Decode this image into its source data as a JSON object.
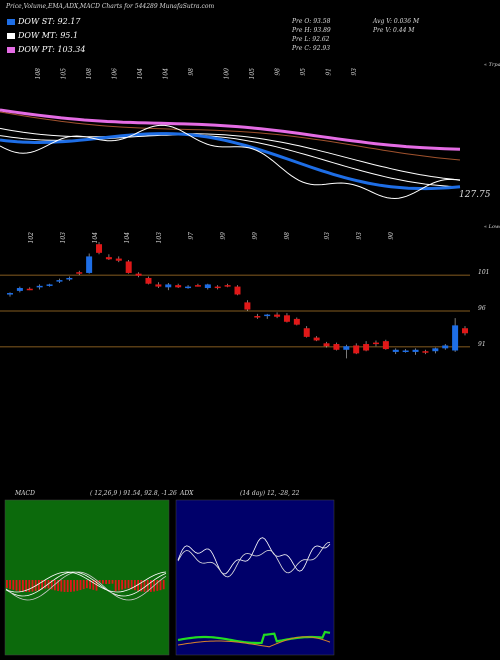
{
  "header": {
    "title": "Price,Volume,EMA,ADX,MACD Charts for 544289 MunafaSutra.com"
  },
  "legend": [
    {
      "label": "DOW ST: 92.17",
      "color": "#1e6ee6"
    },
    {
      "label": "DOW MT: 95.1",
      "color": "#ffffff"
    },
    {
      "label": "DOW PT: 103.34",
      "color": "#e46ce4"
    }
  ],
  "stats": {
    "c1": [
      "Pre  O: 93.58",
      "Pre  H: 93.89",
      "Pre  L: 92.62",
      "Pre  C: 92.93"
    ],
    "c2": [
      "Avg V: 0.036  M",
      "Pre  V: 0.44  M"
    ]
  },
  "colors": {
    "up": "#1e6ee6",
    "down": "#e01818",
    "ema_short": "#1e6ee6",
    "ema_long": "#e46ce4",
    "level_line": "#b07a2a",
    "macd_bg": "#0c6a0c",
    "adx_bg": "#00006a"
  },
  "chart_data": [
    {
      "type": "line",
      "name": "ema-panel",
      "top_labels": [
        "108",
        "105",
        "108",
        "106",
        "104",
        "104",
        "98",
        "100",
        "105",
        "98",
        "95",
        "91",
        "93"
      ],
      "corner_label": "« Trpa",
      "last_value_label": "127.75"
    },
    {
      "type": "candlestick",
      "name": "price-panel",
      "top_labels": [
        "102",
        "103",
        "104",
        "104",
        "103",
        "97",
        "99",
        "99",
        "98",
        "93",
        "93",
        "90"
      ],
      "corner_label": "« Lowes",
      "right_labels": [
        "101",
        "96",
        "91"
      ],
      "levels": [
        101,
        96,
        91
      ],
      "candles": [
        {
          "o": 98.3,
          "h": 98.6,
          "l": 98.0,
          "c": 98.5
        },
        {
          "o": 98.8,
          "h": 99.4,
          "l": 98.6,
          "c": 99.2
        },
        {
          "o": 99.1,
          "h": 99.3,
          "l": 98.9,
          "c": 99.0
        },
        {
          "o": 99.3,
          "h": 99.7,
          "l": 99.0,
          "c": 99.5
        },
        {
          "o": 99.6,
          "h": 99.8,
          "l": 99.4,
          "c": 99.7
        },
        {
          "o": 100.1,
          "h": 100.5,
          "l": 99.9,
          "c": 100.3
        },
        {
          "o": 100.5,
          "h": 100.8,
          "l": 100.2,
          "c": 100.6
        },
        {
          "o": 101.4,
          "h": 101.6,
          "l": 101.0,
          "c": 101.2
        },
        {
          "o": 101.3,
          "h": 104.0,
          "l": 101.2,
          "c": 103.6
        },
        {
          "o": 105.3,
          "h": 105.6,
          "l": 103.9,
          "c": 104.1
        },
        {
          "o": 103.5,
          "h": 103.9,
          "l": 103.1,
          "c": 103.2
        },
        {
          "o": 103.3,
          "h": 103.6,
          "l": 102.8,
          "c": 103.0
        },
        {
          "o": 102.9,
          "h": 103.1,
          "l": 101.2,
          "c": 101.3
        },
        {
          "o": 101.2,
          "h": 101.4,
          "l": 100.7,
          "c": 100.9
        },
        {
          "o": 100.6,
          "h": 100.8,
          "l": 99.7,
          "c": 99.8
        },
        {
          "o": 99.7,
          "h": 100.0,
          "l": 99.2,
          "c": 99.4
        },
        {
          "o": 99.3,
          "h": 99.9,
          "l": 98.9,
          "c": 99.7
        },
        {
          "o": 99.6,
          "h": 99.8,
          "l": 99.2,
          "c": 99.3
        },
        {
          "o": 99.3,
          "h": 99.6,
          "l": 99.1,
          "c": 99.4
        },
        {
          "o": 99.6,
          "h": 99.8,
          "l": 99.4,
          "c": 99.5
        },
        {
          "o": 99.2,
          "h": 99.8,
          "l": 99.0,
          "c": 99.7
        },
        {
          "o": 99.4,
          "h": 99.6,
          "l": 99.0,
          "c": 99.2
        },
        {
          "o": 99.6,
          "h": 99.8,
          "l": 99.3,
          "c": 99.5
        },
        {
          "o": 99.4,
          "h": 99.6,
          "l": 98.2,
          "c": 98.3
        },
        {
          "o": 97.2,
          "h": 97.5,
          "l": 96.0,
          "c": 96.2
        },
        {
          "o": 95.3,
          "h": 95.6,
          "l": 94.9,
          "c": 95.2
        },
        {
          "o": 95.3,
          "h": 95.6,
          "l": 94.9,
          "c": 95.5
        },
        {
          "o": 95.5,
          "h": 95.8,
          "l": 95.0,
          "c": 95.2
        },
        {
          "o": 95.4,
          "h": 95.7,
          "l": 94.4,
          "c": 94.5
        },
        {
          "o": 94.9,
          "h": 95.1,
          "l": 94.0,
          "c": 94.1
        },
        {
          "o": 93.6,
          "h": 93.9,
          "l": 92.3,
          "c": 92.4
        },
        {
          "o": 92.3,
          "h": 92.5,
          "l": 91.8,
          "c": 91.9
        },
        {
          "o": 91.5,
          "h": 91.7,
          "l": 90.9,
          "c": 91.1
        },
        {
          "o": 91.4,
          "h": 91.6,
          "l": 90.5,
          "c": 90.6
        },
        {
          "o": 90.6,
          "h": 91.3,
          "l": 89.4,
          "c": 91.1
        },
        {
          "o": 91.2,
          "h": 91.5,
          "l": 90.0,
          "c": 90.1
        },
        {
          "o": 91.4,
          "h": 91.8,
          "l": 90.4,
          "c": 90.5
        },
        {
          "o": 91.6,
          "h": 91.9,
          "l": 91.1,
          "c": 91.4
        },
        {
          "o": 91.8,
          "h": 92.0,
          "l": 90.6,
          "c": 90.7
        },
        {
          "o": 90.3,
          "h": 90.8,
          "l": 90.0,
          "c": 90.6
        },
        {
          "o": 90.4,
          "h": 90.7,
          "l": 90.2,
          "c": 90.5
        },
        {
          "o": 90.3,
          "h": 90.8,
          "l": 89.9,
          "c": 90.6
        },
        {
          "o": 90.4,
          "h": 90.6,
          "l": 90.0,
          "c": 90.2
        },
        {
          "o": 90.4,
          "h": 90.9,
          "l": 90.1,
          "c": 90.8
        },
        {
          "o": 90.8,
          "h": 91.4,
          "l": 90.6,
          "c": 91.2
        },
        {
          "o": 90.5,
          "h": 95.0,
          "l": 90.3,
          "c": 94.0
        },
        {
          "o": 93.6,
          "h": 93.9,
          "l": 92.6,
          "c": 92.9
        }
      ]
    },
    {
      "type": "line",
      "name": "macd-panel",
      "title": "MACD",
      "params": "( 12,26,9 ) 91.54,  92.8,  -1.26"
    },
    {
      "type": "line",
      "name": "adx-panel",
      "title": "ADX",
      "params": "(14  day) 12,  -28,  22"
    }
  ]
}
